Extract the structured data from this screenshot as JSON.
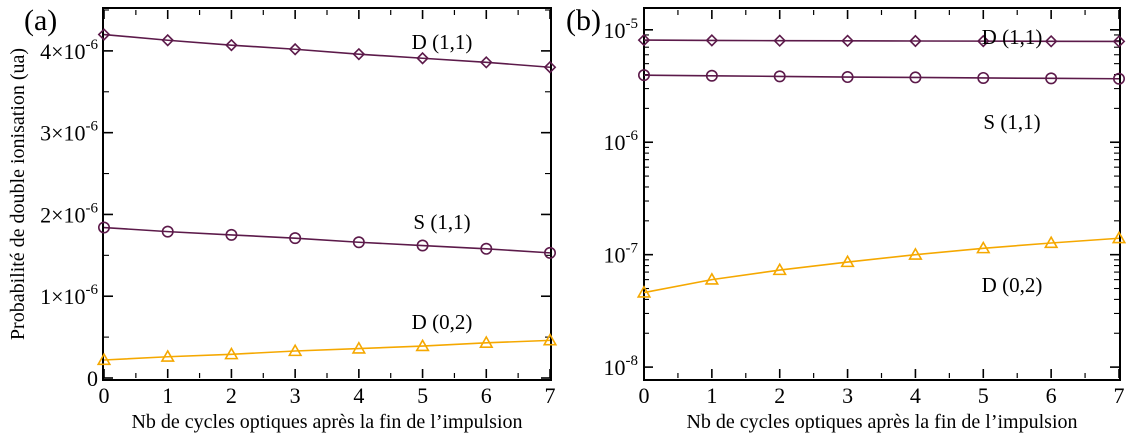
{
  "panels": [
    {
      "panel_label": "(a)",
      "ylabel": "Probabilité de double ionisation (ua)",
      "xlabel": "Nb de cycles optiques après la fin de l’impulsion",
      "yticks": [
        {
          "value": 0,
          "base": "0",
          "exp": ""
        },
        {
          "value": 1e-06,
          "base": "1×10",
          "exp": "-6"
        },
        {
          "value": 2e-06,
          "base": "2×10",
          "exp": "-6"
        },
        {
          "value": 3e-06,
          "base": "3×10",
          "exp": "-6"
        },
        {
          "value": 4e-06,
          "base": "4×10",
          "exp": "-6"
        }
      ]
    },
    {
      "panel_label": "(b)",
      "ylabel": "",
      "xlabel": "Nb de cycles optiques après la fin de l’impulsion",
      "yticks": [
        {
          "value": 1e-08,
          "base": "10",
          "exp": "-8"
        },
        {
          "value": 1e-07,
          "base": "10",
          "exp": "-7"
        },
        {
          "value": 1e-06,
          "base": "10",
          "exp": "-6"
        },
        {
          "value": 1e-05,
          "base": "10",
          "exp": "-5"
        }
      ]
    }
  ],
  "chart_data": [
    {
      "type": "line",
      "title": "(a)",
      "xlabel": "Nb de cycles optiques après la fin de l’impulsion",
      "ylabel": "Probabilité de double ionisation (ua)",
      "yscale": "linear",
      "xlim": [
        0,
        7
      ],
      "ylim": [
        0,
        4.5e-06
      ],
      "x": [
        0,
        1,
        2,
        3,
        4,
        5,
        6,
        7
      ],
      "xticks": [
        "0",
        "1",
        "2",
        "3",
        "4",
        "5",
        "6",
        "7"
      ],
      "grid": false,
      "series": [
        {
          "name": "D (1,1)",
          "marker": "diamond",
          "color": "#5c1a4a",
          "values": [
            4.2e-06,
            4.13e-06,
            4.07e-06,
            4.02e-06,
            3.96e-06,
            3.91e-06,
            3.86e-06,
            3.8e-06
          ]
        },
        {
          "name": "S (1,1)",
          "marker": "circle",
          "color": "#5c1a4a",
          "values": [
            1.84e-06,
            1.79e-06,
            1.75e-06,
            1.71e-06,
            1.66e-06,
            1.62e-06,
            1.58e-06,
            1.53e-06
          ]
        },
        {
          "name": "D (0,2)",
          "marker": "triangle",
          "color": "#f5a800",
          "values": [
            2.2e-07,
            2.6e-07,
            2.9e-07,
            3.3e-07,
            3.6e-07,
            3.9e-07,
            4.3e-07,
            4.6e-07
          ]
        }
      ]
    },
    {
      "type": "line",
      "title": "(b)",
      "xlabel": "Nb de cycles optiques après la fin de l’impulsion",
      "ylabel": "",
      "yscale": "log",
      "xlim": [
        0,
        7
      ],
      "ylim": [
        8e-09,
        1.5e-05
      ],
      "x": [
        0,
        1,
        2,
        3,
        4,
        5,
        6,
        7
      ],
      "xticks": [
        "0",
        "1",
        "2",
        "3",
        "4",
        "5",
        "6",
        "7"
      ],
      "grid": false,
      "series": [
        {
          "name": "D (1,1)",
          "marker": "diamond",
          "color": "#5c1a4a",
          "values": [
            8.1e-06,
            8.05e-06,
            8e-06,
            7.98e-06,
            7.95e-06,
            7.93e-06,
            7.9e-06,
            7.88e-06
          ]
        },
        {
          "name": "S (1,1)",
          "marker": "circle",
          "color": "#5c1a4a",
          "values": [
            3.95e-06,
            3.9e-06,
            3.85e-06,
            3.8e-06,
            3.77e-06,
            3.73e-06,
            3.7e-06,
            3.67e-06
          ]
        },
        {
          "name": "D (0,2)",
          "marker": "triangle",
          "color": "#f5a800",
          "values": [
            4.6e-08,
            6e-08,
            7.3e-08,
            8.6e-08,
            1e-07,
            1.14e-07,
            1.27e-07,
            1.4e-07
          ]
        }
      ]
    }
  ]
}
